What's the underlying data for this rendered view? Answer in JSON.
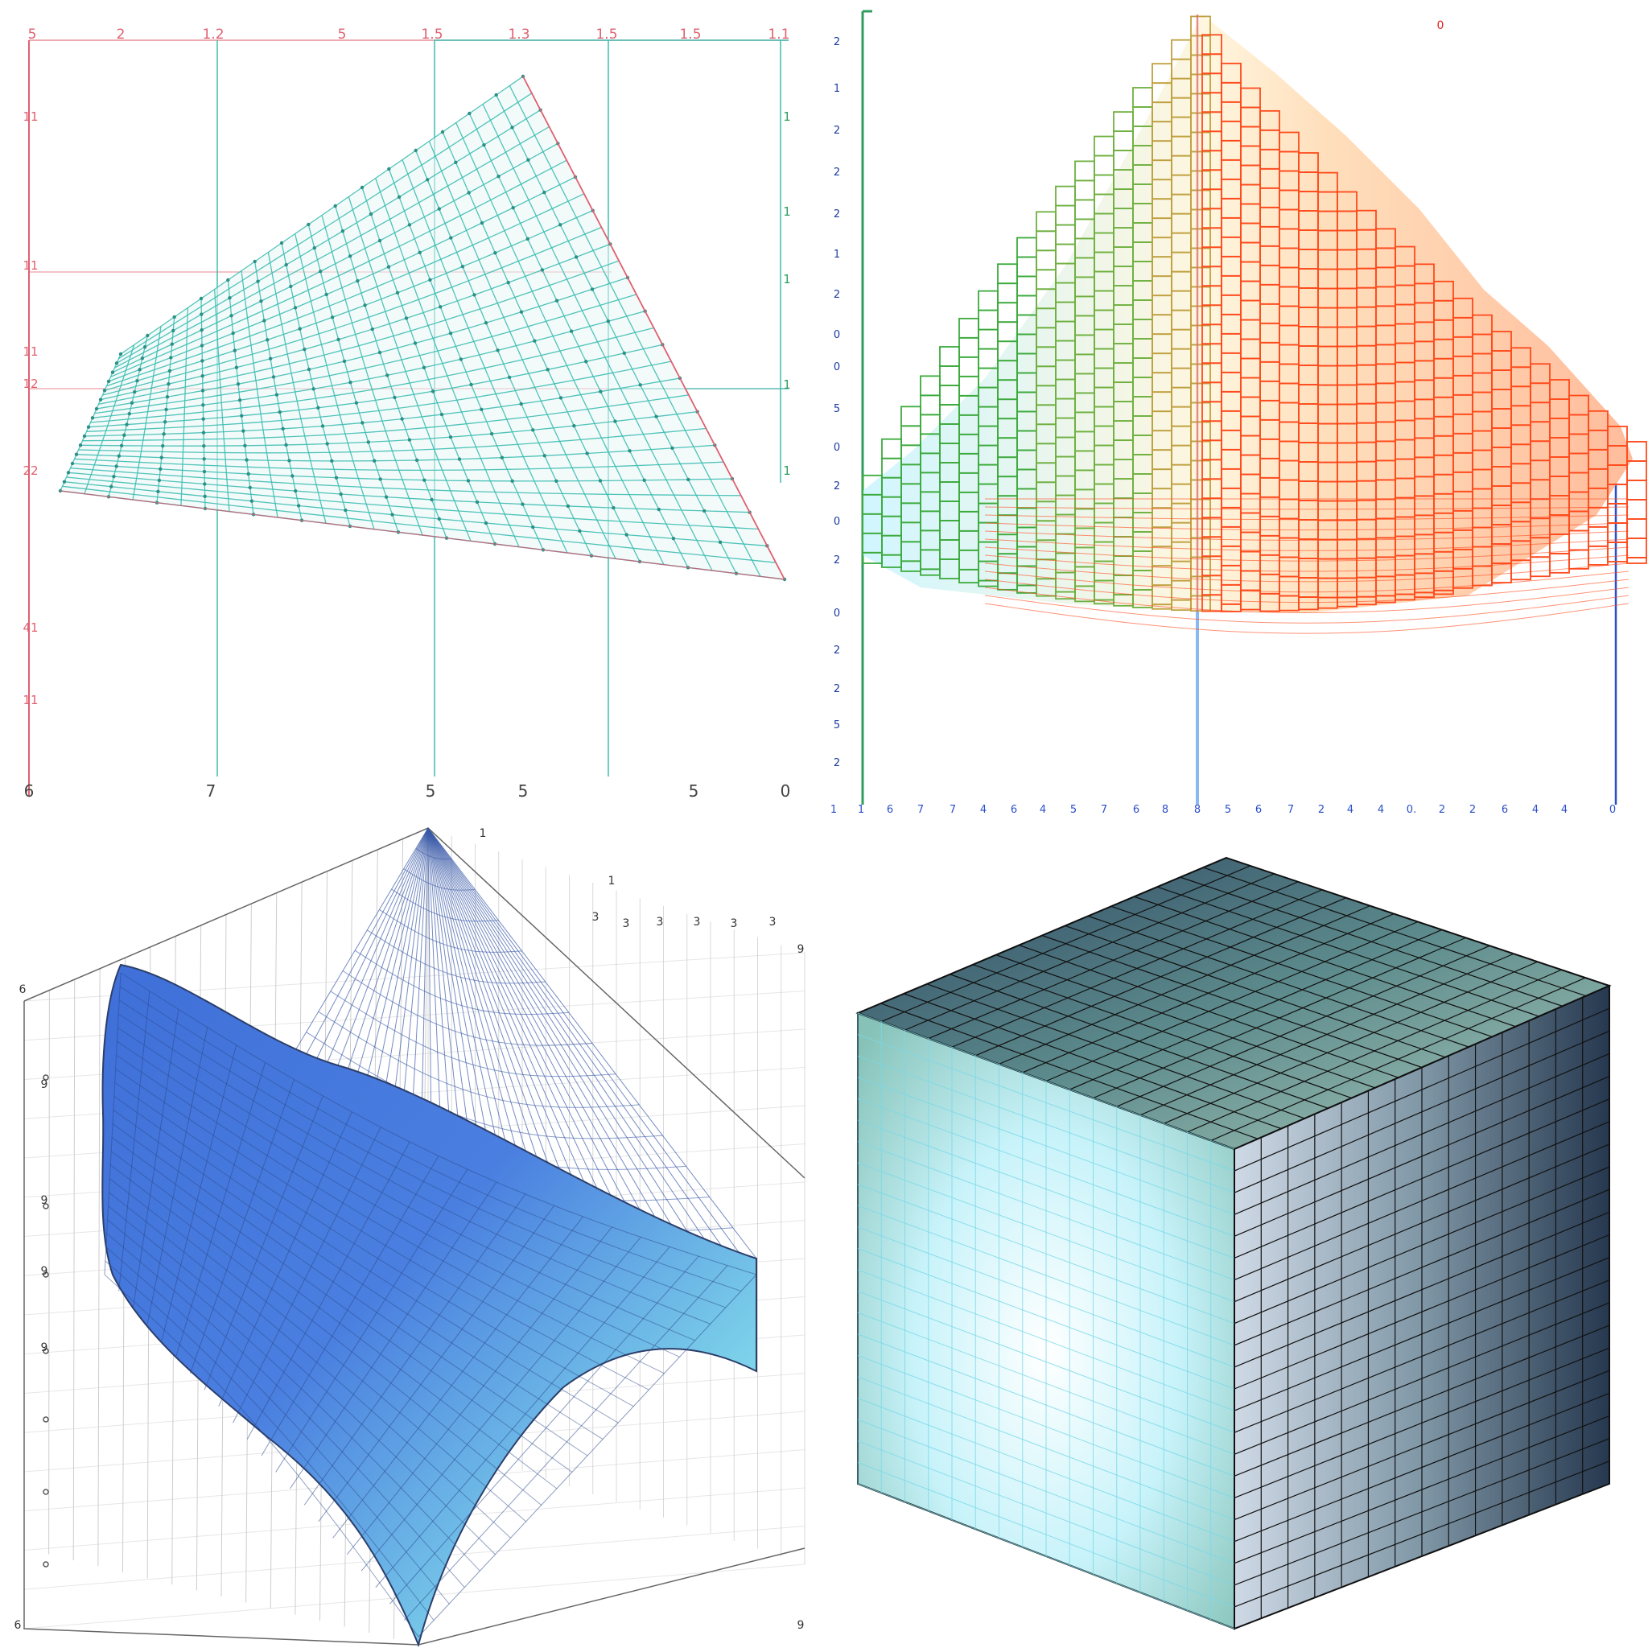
{
  "colors": {
    "teal": "#3dbdb1",
    "teal_dot": "#2d8f86",
    "red_axis": "#e06070",
    "green_axis": "#2e9e5e",
    "blue_axis": "#2b4fc8",
    "orange": "#ff4a1c",
    "green_mesh": "#3caa3c",
    "blue_surface_dark": "#3c62c8",
    "blue_surface_light": "#8fe4ec",
    "cube_dark": "#24364f",
    "cube_light": "#e8fbff"
  },
  "chart_data": [
    {
      "type": "surface",
      "name": "Top-left teal wireframe",
      "top_labels": [
        "5",
        "2",
        "1.2",
        "5",
        "1.5",
        "1.3",
        "1.5",
        "1.5",
        "1.1"
      ],
      "left_labels": [
        "11",
        "11",
        "11",
        "12",
        "22",
        "41",
        "11"
      ],
      "right_labels": [
        "1",
        "1",
        "1",
        "1",
        "1"
      ],
      "bottom_labels": [
        "6",
        "7",
        "5",
        "5",
        "5",
        "0"
      ]
    },
    {
      "type": "surface",
      "name": "Top-right green-to-orange wireframe",
      "top_labels": [
        "0"
      ],
      "left_labels": [
        "2",
        "1",
        "2",
        "2",
        "2",
        "1",
        "2",
        "0",
        "0",
        "5",
        "0",
        "2",
        "0",
        "2",
        "0",
        "2",
        "2",
        "5",
        "2"
      ],
      "bottom_labels": [
        "1",
        "1",
        "6",
        "7",
        "7",
        "4",
        "6",
        "4",
        "5",
        "7",
        "6",
        "8",
        "8",
        "5",
        "6",
        "7",
        "2",
        "4",
        "4",
        "0.",
        "2",
        "2",
        "6",
        "4",
        "4",
        "0"
      ]
    },
    {
      "type": "surface",
      "name": "Bottom-left blue shaded surface",
      "top_labels": [
        "1",
        "1",
        "3",
        "3",
        "3",
        "3",
        "3",
        "3",
        "9"
      ],
      "left_labels": [
        "6",
        "9",
        "9",
        "9",
        "9",
        "6"
      ],
      "right_labels": [
        "9"
      ]
    },
    {
      "type": "surface",
      "name": "Bottom-right cube grid"
    }
  ]
}
